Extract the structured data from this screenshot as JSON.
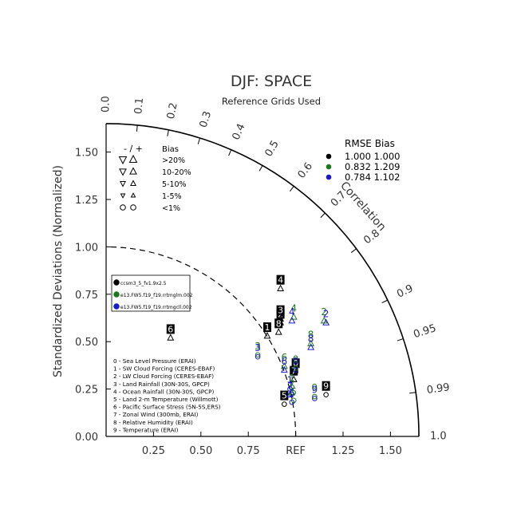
{
  "chart_data": {
    "type": "scatter",
    "title": "DJF: SPACE",
    "subtitle": "Reference Grids Used",
    "ylabel": "Standardized Deviations (Normalized)",
    "ref_label": "REF",
    "corr_axis_label": "Correlation",
    "std_range": [
      0,
      1.65
    ],
    "std_ticks": [
      "0.00",
      "0.25",
      "0.50",
      "0.75",
      "1.00",
      "1.25",
      "1.50"
    ],
    "std_tick_values": [
      0,
      0.25,
      0.5,
      0.75,
      1.0,
      1.25,
      1.5
    ],
    "x_ticks": [
      "0.25",
      "0.50",
      "0.75",
      "1.25",
      "1.50"
    ],
    "x_tick_values": [
      0.25,
      0.5,
      0.75,
      1.25,
      1.5
    ],
    "corr_ticks": [
      "0.0",
      "0.1",
      "0.2",
      "0.3",
      "0.4",
      "0.5",
      "0.6",
      "0.7",
      "0.8",
      "0.9",
      "0.95",
      "0.99",
      "1.0"
    ],
    "corr_tick_values": [
      0.0,
      0.1,
      0.2,
      0.3,
      0.4,
      0.5,
      0.6,
      0.7,
      0.8,
      0.9,
      0.95,
      0.99,
      1.0
    ],
    "bias_legend": {
      "header_sign": "-  /  +",
      "header_label": "Bias",
      "rows": [
        {
          "label": ">20%",
          "size": 4
        },
        {
          "label": "10-20%",
          "size": 3
        },
        {
          "label": "5-10%",
          "size": 2
        },
        {
          "label": "1-5%",
          "size": 1
        },
        {
          "label": "<1%",
          "size": 0
        }
      ]
    },
    "stats_legend": {
      "header": "RMSE  Bias",
      "rows": [
        {
          "color": "#000000",
          "text": "1.000 1.000"
        },
        {
          "color": "#1a7a1a",
          "text": "0.832 1.209"
        },
        {
          "color": "#1a1acc",
          "text": "0.784 1.102"
        }
      ]
    },
    "series": [
      {
        "name": "ccsm3_5_fv1.9x2.5",
        "color": "#000000",
        "label_style": "box",
        "points": [
          {
            "id": "0",
            "x": 1.0,
            "y": 0.34,
            "marker": "circle"
          },
          {
            "id": "1",
            "x": 0.85,
            "y": 0.53,
            "marker": "up"
          },
          {
            "id": "2",
            "x": 0.92,
            "y": 0.6,
            "marker": "up"
          },
          {
            "id": "3",
            "x": 0.92,
            "y": 0.62,
            "marker": "up"
          },
          {
            "id": "4",
            "x": 0.92,
            "y": 0.78,
            "marker": "up"
          },
          {
            "id": "5",
            "x": 0.94,
            "y": 0.17,
            "marker": "circle"
          },
          {
            "id": "6",
            "x": 0.34,
            "y": 0.52,
            "marker": "up"
          },
          {
            "id": "7",
            "x": 0.99,
            "y": 0.3,
            "marker": "up"
          },
          {
            "id": "8",
            "x": 0.91,
            "y": 0.55,
            "marker": "up"
          },
          {
            "id": "9",
            "x": 1.16,
            "y": 0.22,
            "marker": "circle"
          }
        ]
      },
      {
        "name": "e13.FW5.f19_f19.rrtmglm.002",
        "color": "#1a7a1a",
        "label_style": "text",
        "points": [
          {
            "id": "0",
            "x": 1.0,
            "y": 0.36,
            "marker": "circle"
          },
          {
            "id": "1",
            "x": 0.98,
            "y": 0.26,
            "marker": "circle"
          },
          {
            "id": "2",
            "x": 1.15,
            "y": 0.61,
            "marker": "up"
          },
          {
            "id": "3",
            "x": 0.8,
            "y": 0.43,
            "marker": "circle"
          },
          {
            "id": "4",
            "x": 0.99,
            "y": 0.63,
            "marker": "up"
          },
          {
            "id": "5",
            "x": 0.99,
            "y": 0.19,
            "marker": "circle"
          },
          {
            "id": "6",
            "x": 0.94,
            "y": 0.37,
            "marker": "up"
          },
          {
            "id": "7",
            "x": 0.98,
            "y": 0.23,
            "marker": "up"
          },
          {
            "id": "8",
            "x": 1.08,
            "y": 0.49,
            "marker": "up"
          },
          {
            "id": "9",
            "x": 1.1,
            "y": 0.21,
            "marker": "circle"
          }
        ]
      },
      {
        "name": "e13.FW5.f19_f19.rrtmgcll.002",
        "color": "#1a1acc",
        "label_style": "text",
        "points": [
          {
            "id": "0",
            "x": 1.0,
            "y": 0.35,
            "marker": "circle"
          },
          {
            "id": "1",
            "x": 0.97,
            "y": 0.25,
            "marker": "circle"
          },
          {
            "id": "2",
            "x": 1.16,
            "y": 0.6,
            "marker": "up"
          },
          {
            "id": "3",
            "x": 0.8,
            "y": 0.42,
            "marker": "circle"
          },
          {
            "id": "4",
            "x": 0.98,
            "y": 0.61,
            "marker": "up"
          },
          {
            "id": "5",
            "x": 0.98,
            "y": 0.18,
            "marker": "circle"
          },
          {
            "id": "6",
            "x": 0.94,
            "y": 0.35,
            "marker": "up"
          },
          {
            "id": "7",
            "x": 0.97,
            "y": 0.22,
            "marker": "up"
          },
          {
            "id": "8",
            "x": 1.08,
            "y": 0.47,
            "marker": "up"
          },
          {
            "id": "9",
            "x": 1.1,
            "y": 0.2,
            "marker": "circle"
          }
        ]
      }
    ],
    "variables": [
      "0 - Sea Level Pressure (ERAI)",
      "1 - SW Cloud Forcing (CERES-EBAF)",
      "2 - LW Cloud Forcing (CERES-EBAF)",
      "3 - Land Rainfall (30N-30S, GPCP)",
      "4 - Ocean Rainfall (30N-30S, GPCP)",
      "5 - Land 2-m Temperature (Willmott)",
      "6 - Pacific Surface Stress (5N-5S,ERS)",
      "7 - Zonal Wind (300mb, ERAI)",
      "8 - Relative Humidity (ERAI)",
      "9 - Temperature (ERAI)"
    ]
  }
}
